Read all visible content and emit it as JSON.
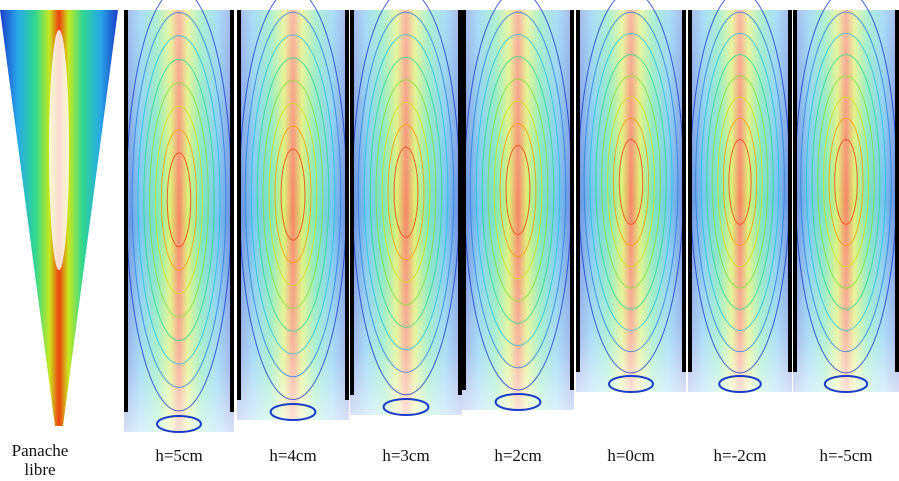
{
  "panels": [
    {
      "label": "Panache libre"
    },
    {
      "label": "h=5cm"
    },
    {
      "label": "h=4cm"
    },
    {
      "label": "h=3cm"
    },
    {
      "label": "h=2cm"
    },
    {
      "label": "h=0cm"
    },
    {
      "label": "h=-2cm"
    },
    {
      "label": "h=-5cm"
    }
  ]
}
